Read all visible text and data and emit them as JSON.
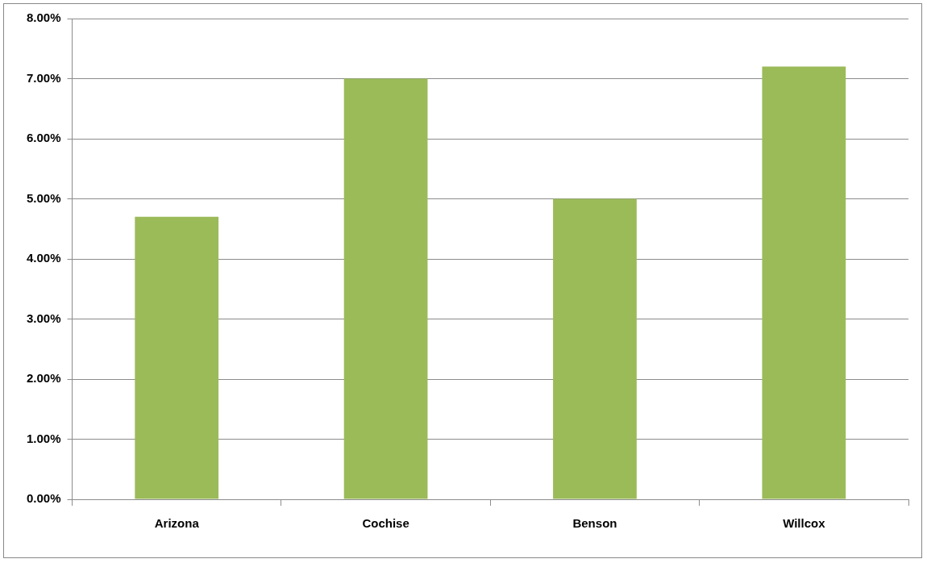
{
  "chart_data": {
    "type": "bar",
    "categories": [
      "Arizona",
      "Cochise",
      "Benson",
      "Willcox"
    ],
    "values": [
      4.7,
      7.0,
      5.0,
      7.2
    ],
    "color": "#9bbb59",
    "ylim": [
      0,
      8
    ],
    "yticks": [
      {
        "value": 0,
        "label": "0.00%"
      },
      {
        "value": 1,
        "label": "1.00%"
      },
      {
        "value": 2,
        "label": "2.00%"
      },
      {
        "value": 3,
        "label": "3.00%"
      },
      {
        "value": 4,
        "label": "4.00%"
      },
      {
        "value": 5,
        "label": "5.00%"
      },
      {
        "value": 6,
        "label": "6.00%"
      },
      {
        "value": 7,
        "label": "7.00%"
      },
      {
        "value": 8,
        "label": "8.00%"
      }
    ],
    "grid": "y"
  }
}
